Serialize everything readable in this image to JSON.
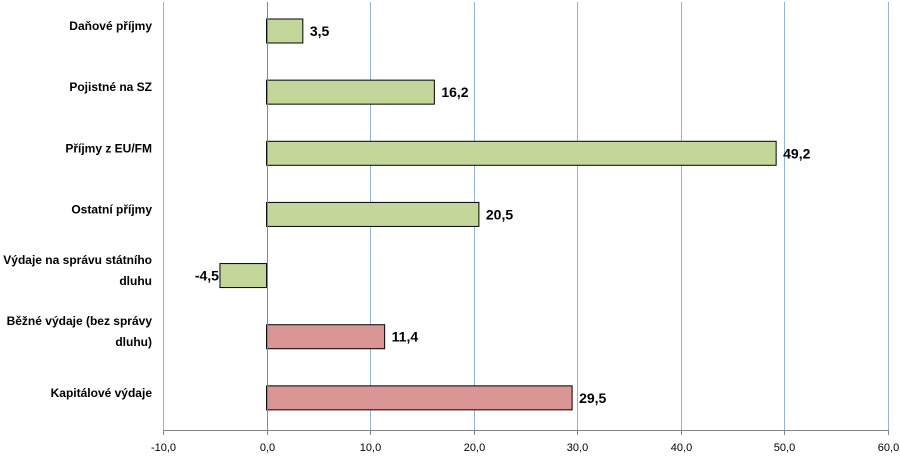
{
  "chart_data": {
    "type": "bar",
    "orientation": "horizontal",
    "categories": [
      "Daňové příjmy",
      "Pojistné na SZ",
      "Příjmy z EU/FM",
      "Ostatní příjmy",
      "Výdaje na správu státního dluhu",
      "Běžné výdaje (bez správy dluhu)",
      "Kapitálové výdaje"
    ],
    "category_lines": [
      [
        "Daňové příjmy"
      ],
      [
        "Pojistné na SZ"
      ],
      [
        "Příjmy z EU/FM"
      ],
      [
        "Ostatní příjmy"
      ],
      [
        "Výdaje na správu státního",
        "dluhu"
      ],
      [
        "Běžné výdaje (bez správy",
        "dluhu)"
      ],
      [
        "Kapitálové výdaje"
      ]
    ],
    "values": [
      3.5,
      16.2,
      49.2,
      20.5,
      -4.5,
      11.4,
      29.5
    ],
    "value_labels": [
      "3,5",
      "16,2",
      "49,2",
      "20,5",
      "-4,5",
      "11,4",
      "29,5"
    ],
    "bar_colors": [
      "#c4d79b",
      "#c4d79b",
      "#c4d79b",
      "#c4d79b",
      "#c4d79b",
      "#da9694",
      "#da9694"
    ],
    "xlim": [
      -10,
      60
    ],
    "xticks": [
      -10,
      0,
      10,
      20,
      30,
      40,
      50,
      60
    ],
    "xtick_labels": [
      "-10,0",
      "0,0",
      "10,0",
      "20,0",
      "30,0",
      "40,0",
      "50,0",
      "60,0"
    ],
    "grid": "vertical",
    "grid_color": "#95b3d7",
    "title": "",
    "xlabel": "",
    "ylabel": ""
  }
}
